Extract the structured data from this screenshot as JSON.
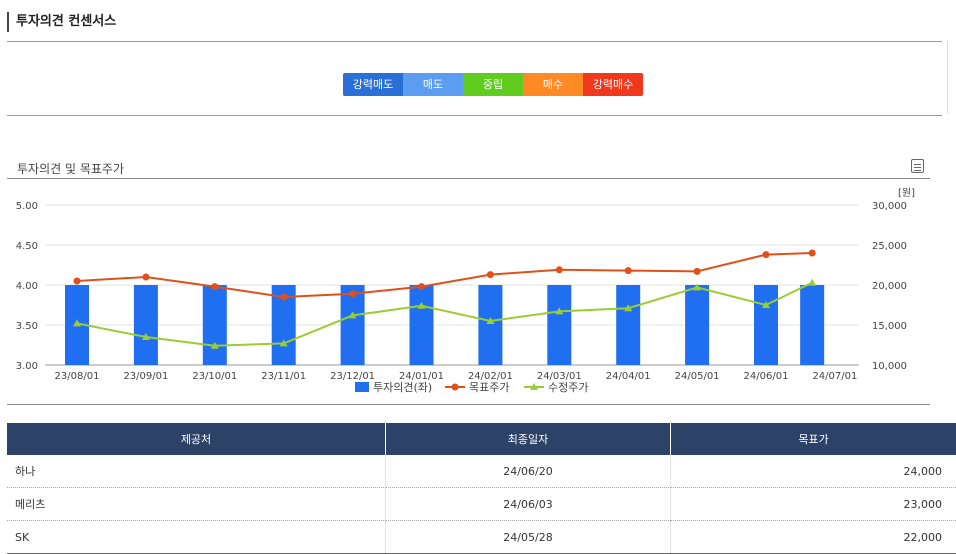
{
  "section": {
    "title": "투자의견 컨센서스"
  },
  "opinion_scale": [
    {
      "label": "강력매도",
      "color": "#2a6fd6"
    },
    {
      "label": "매도",
      "color": "#5b9ef0"
    },
    {
      "label": "중립",
      "color": "#5fcc1f"
    },
    {
      "label": "매수",
      "color": "#ff8a25"
    },
    {
      "label": "강력매수",
      "color": "#f0391c"
    }
  ],
  "chart_section": {
    "title": "투자의견 및 목표주가"
  },
  "chart_data": {
    "type": "bar",
    "x": [
      "23/08/01",
      "23/09/01",
      "23/10/01",
      "23/11/01",
      "23/12/01",
      "24/01/01",
      "24/02/01",
      "24/03/01",
      "24/04/01",
      "24/05/01",
      "24/06/01",
      "24/07/01"
    ],
    "y_left": {
      "ticks": [
        "5.00",
        "4.50",
        "4.00",
        "3.50",
        "3.00"
      ],
      "range": [
        3.0,
        5.0
      ]
    },
    "y_right": {
      "unit": "[원]",
      "ticks": [
        "30,000",
        "25,000",
        "20,000",
        "15,000",
        "10,000"
      ],
      "range": [
        10000,
        30000
      ]
    },
    "grid": true,
    "legend_position": "bottom",
    "series": [
      {
        "name": "투자의견(좌)",
        "kind": "bar",
        "axis": "left",
        "color": "#1f6ff0",
        "x_idx": [
          0,
          1,
          2,
          3,
          4,
          5,
          6,
          7,
          8,
          9,
          10,
          10.67
        ],
        "values": [
          4.0,
          4.0,
          4.0,
          4.0,
          4.0,
          4.0,
          4.0,
          4.0,
          4.0,
          4.0,
          4.0,
          4.0
        ]
      },
      {
        "name": "목표주가",
        "kind": "line",
        "axis": "right",
        "color": "#e0501a",
        "x_idx": [
          0,
          1,
          2,
          3,
          4,
          5,
          6,
          7,
          8,
          9,
          10,
          10.67
        ],
        "values": [
          20500,
          21000,
          19800,
          18500,
          18900,
          19800,
          21300,
          21900,
          21800,
          21700,
          23800,
          24000
        ]
      },
      {
        "name": "수정주가",
        "kind": "line",
        "axis": "right",
        "color": "#9acd32",
        "x_idx": [
          0,
          1,
          2,
          3,
          4,
          5,
          6,
          7,
          8,
          9,
          10,
          10.67
        ],
        "values": [
          15200,
          13500,
          12400,
          12700,
          16200,
          17400,
          15500,
          16700,
          17100,
          19700,
          17500,
          20300
        ]
      }
    ]
  },
  "table": {
    "headers": [
      "제공처",
      "최종일자",
      "목표가"
    ],
    "rows": [
      [
        "하나",
        "24/06/20",
        "24,000"
      ],
      [
        "메리츠",
        "24/06/03",
        "23,000"
      ],
      [
        "SK",
        "24/05/28",
        "22,000"
      ]
    ]
  }
}
